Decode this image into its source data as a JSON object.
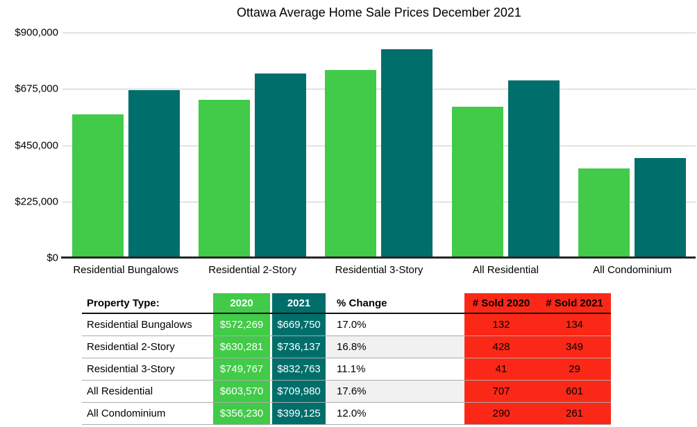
{
  "title": "Ottawa Average Home Sale Prices December 2021",
  "colors": {
    "green": "#41CB48",
    "teal": "#006E6A",
    "red": "#FB2817",
    "row_alt": "#F1F1F1",
    "gridline": "#C9C9C9"
  },
  "chart_data": {
    "type": "bar",
    "title": "Ottawa Average Home Sale Prices December 2021",
    "categories": [
      "Residential Bungalows",
      "Residential 2-Story",
      "Residential 3-Story",
      "All Residential",
      "All Condominium"
    ],
    "series": [
      {
        "name": "2020",
        "color_key": "green",
        "values": [
          572269,
          630281,
          749767,
          603570,
          356230
        ]
      },
      {
        "name": "2021",
        "color_key": "teal",
        "values": [
          669750,
          736137,
          832763,
          709980,
          399125
        ]
      }
    ],
    "xlabel": "",
    "ylabel": "",
    "ylim": [
      0,
      900000
    ],
    "ytick_values": [
      0,
      225000,
      450000,
      675000,
      900000
    ],
    "yticks": [
      "$0",
      "$225,000",
      "$450,000",
      "$675,000",
      "$900,000"
    ],
    "grid": true,
    "legend": "none"
  },
  "table": {
    "headers": {
      "property": "Property Type:",
      "y2020": "2020",
      "y2021": "2021",
      "pct": "% Change",
      "sold2020": "# Sold 2020",
      "sold2021": "# Sold 2021"
    },
    "rows": [
      {
        "property": "Residential Bungalows",
        "p2020": "$572,269",
        "p2021": "$669,750",
        "pct": "17.0%",
        "s2020": "132",
        "s2021": "134"
      },
      {
        "property": "Residential 2-Story",
        "p2020": "$630,281",
        "p2021": "$736,137",
        "pct": "16.8%",
        "s2020": "428",
        "s2021": "349"
      },
      {
        "property": "Residential 3-Story",
        "p2020": "$749,767",
        "p2021": "$832,763",
        "pct": "11.1%",
        "s2020": "41",
        "s2021": "29"
      },
      {
        "property": "All Residential",
        "p2020": "$603,570",
        "p2021": "$709,980",
        "pct": "17.6%",
        "s2020": "707",
        "s2021": "601"
      },
      {
        "property": "All Condominium",
        "p2020": "$356,230",
        "p2021": "$399,125",
        "pct": "12.0%",
        "s2020": "290",
        "s2021": "261"
      }
    ]
  }
}
